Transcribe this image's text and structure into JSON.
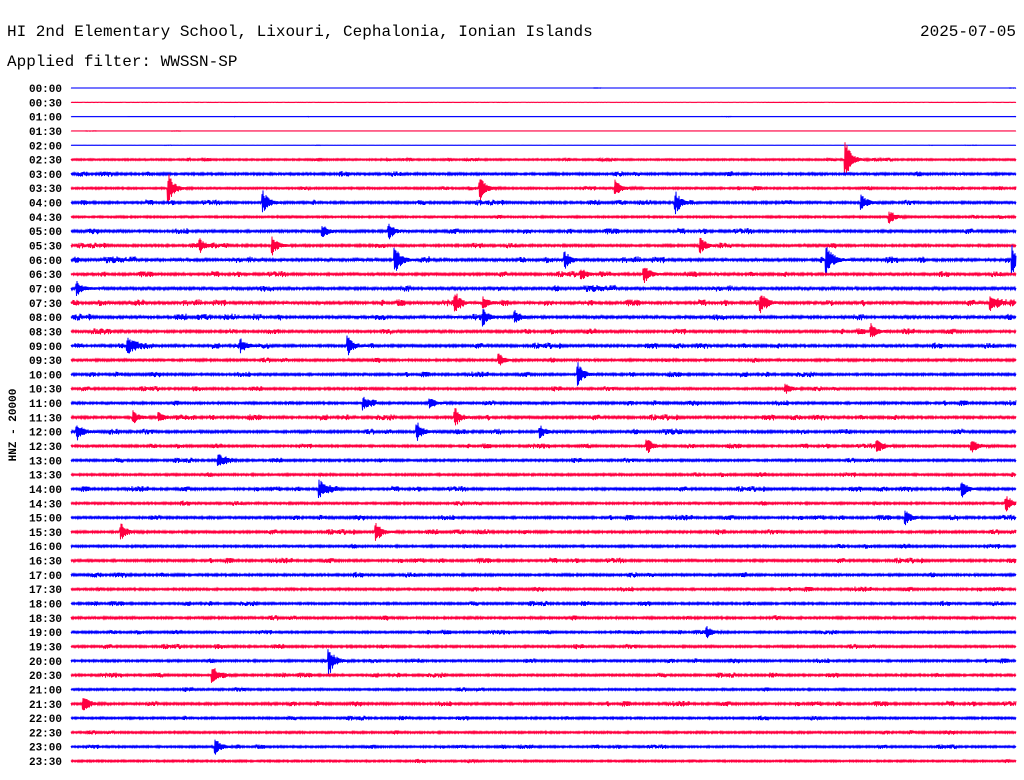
{
  "header": {
    "title": "HI 2nd Elementary School, Lixouri, Cephalonia, Ionian Islands",
    "date": "2025-07-05",
    "filter": "Applied filter: WWSSN-SP"
  },
  "chart_data": {
    "type": "line",
    "title": "HI 2nd Elementary School, Lixouri, Cephalonia, Ionian Islands",
    "ylabel": "HNZ - 20000",
    "row_minutes": 30,
    "colors": [
      "#0000ff",
      "#ff0040"
    ],
    "rows": [
      "00:00",
      "00:30",
      "01:00",
      "01:30",
      "02:00",
      "02:30",
      "03:00",
      "03:30",
      "04:00",
      "04:30",
      "05:00",
      "05:30",
      "06:00",
      "06:30",
      "07:00",
      "07:30",
      "08:00",
      "08:30",
      "09:00",
      "09:30",
      "10:00",
      "10:30",
      "11:00",
      "11:30",
      "12:00",
      "12:30",
      "13:00",
      "13:30",
      "14:00",
      "14:30",
      "15:00",
      "15:30",
      "16:00",
      "16:30",
      "17:00",
      "17:30",
      "18:00",
      "18:30",
      "19:00",
      "19:30",
      "20:00",
      "20:30",
      "21:00",
      "21:30",
      "22:00",
      "22:30",
      "23:00",
      "23:30"
    ],
    "noise_level": [
      0.03,
      0.03,
      0.03,
      0.04,
      0.04,
      0.12,
      0.2,
      0.15,
      0.2,
      0.15,
      0.22,
      0.2,
      0.25,
      0.22,
      0.25,
      0.25,
      0.25,
      0.22,
      0.22,
      0.2,
      0.2,
      0.18,
      0.2,
      0.22,
      0.22,
      0.18,
      0.18,
      0.18,
      0.2,
      0.18,
      0.2,
      0.2,
      0.18,
      0.2,
      0.2,
      0.18,
      0.18,
      0.2,
      0.16,
      0.18,
      0.18,
      0.18,
      0.16,
      0.2,
      0.16,
      0.16,
      0.15,
      0.14
    ],
    "events": [
      {
        "row": 5,
        "minute": 24.6,
        "amp": 1.0
      },
      {
        "row": 7,
        "minute": 3.1,
        "amp": 0.85
      },
      {
        "row": 7,
        "minute": 13.0,
        "amp": 0.65
      },
      {
        "row": 7,
        "minute": 17.3,
        "amp": 0.45
      },
      {
        "row": 8,
        "minute": 6.1,
        "amp": 0.65
      },
      {
        "row": 8,
        "minute": 19.2,
        "amp": 0.65
      },
      {
        "row": 8,
        "minute": 25.1,
        "amp": 0.45
      },
      {
        "row": 9,
        "minute": 26.0,
        "amp": 0.35
      },
      {
        "row": 10,
        "minute": 8.0,
        "amp": 0.35
      },
      {
        "row": 10,
        "minute": 10.1,
        "amp": 0.45
      },
      {
        "row": 11,
        "minute": 4.1,
        "amp": 0.35
      },
      {
        "row": 11,
        "minute": 6.4,
        "amp": 0.5
      },
      {
        "row": 11,
        "minute": 20.0,
        "amp": 0.45
      },
      {
        "row": 12,
        "minute": 10.3,
        "amp": 0.8
      },
      {
        "row": 12,
        "minute": 15.7,
        "amp": 0.45
      },
      {
        "row": 12,
        "minute": 24.0,
        "amp": 0.9
      },
      {
        "row": 12,
        "minute": 29.9,
        "amp": 0.8
      },
      {
        "row": 13,
        "minute": 16.2,
        "amp": 0.35
      },
      {
        "row": 13,
        "minute": 18.2,
        "amp": 0.55
      },
      {
        "row": 14,
        "minute": 0.2,
        "amp": 0.4
      },
      {
        "row": 15,
        "minute": 12.2,
        "amp": 0.45
      },
      {
        "row": 15,
        "minute": 13.1,
        "amp": 0.35
      },
      {
        "row": 15,
        "minute": 21.9,
        "amp": 0.45
      },
      {
        "row": 15,
        "minute": 29.2,
        "amp": 0.45
      },
      {
        "row": 16,
        "minute": 13.1,
        "amp": 0.45
      },
      {
        "row": 16,
        "minute": 14.1,
        "amp": 0.4
      },
      {
        "row": 17,
        "minute": 25.4,
        "amp": 0.45
      },
      {
        "row": 18,
        "minute": 1.8,
        "amp": 0.55
      },
      {
        "row": 18,
        "minute": 5.4,
        "amp": 0.4
      },
      {
        "row": 18,
        "minute": 8.8,
        "amp": 0.55
      },
      {
        "row": 19,
        "minute": 13.6,
        "amp": 0.35
      },
      {
        "row": 20,
        "minute": 16.1,
        "amp": 0.65
      },
      {
        "row": 21,
        "minute": 22.7,
        "amp": 0.3
      },
      {
        "row": 22,
        "minute": 9.3,
        "amp": 0.4
      },
      {
        "row": 22,
        "minute": 11.4,
        "amp": 0.3
      },
      {
        "row": 23,
        "minute": 2.0,
        "amp": 0.35
      },
      {
        "row": 23,
        "minute": 2.8,
        "amp": 0.3
      },
      {
        "row": 23,
        "minute": 12.2,
        "amp": 0.55
      },
      {
        "row": 24,
        "minute": 0.2,
        "amp": 0.5
      },
      {
        "row": 24,
        "minute": 11.0,
        "amp": 0.5
      },
      {
        "row": 24,
        "minute": 14.9,
        "amp": 0.35
      },
      {
        "row": 25,
        "minute": 18.3,
        "amp": 0.45
      },
      {
        "row": 25,
        "minute": 25.6,
        "amp": 0.45
      },
      {
        "row": 25,
        "minute": 28.6,
        "amp": 0.45
      },
      {
        "row": 26,
        "minute": 4.7,
        "amp": 0.4
      },
      {
        "row": 28,
        "minute": 7.9,
        "amp": 0.5
      },
      {
        "row": 28,
        "minute": 28.3,
        "amp": 0.45
      },
      {
        "row": 29,
        "minute": 29.7,
        "amp": 0.45
      },
      {
        "row": 30,
        "minute": 26.5,
        "amp": 0.4
      },
      {
        "row": 31,
        "minute": 1.6,
        "amp": 0.5
      },
      {
        "row": 31,
        "minute": 9.7,
        "amp": 0.55
      },
      {
        "row": 38,
        "minute": 20.2,
        "amp": 0.3
      },
      {
        "row": 40,
        "minute": 8.2,
        "amp": 0.8
      },
      {
        "row": 41,
        "minute": 4.5,
        "amp": 0.55
      },
      {
        "row": 43,
        "minute": 0.4,
        "amp": 0.5
      },
      {
        "row": 46,
        "minute": 4.6,
        "amp": 0.45
      }
    ]
  }
}
